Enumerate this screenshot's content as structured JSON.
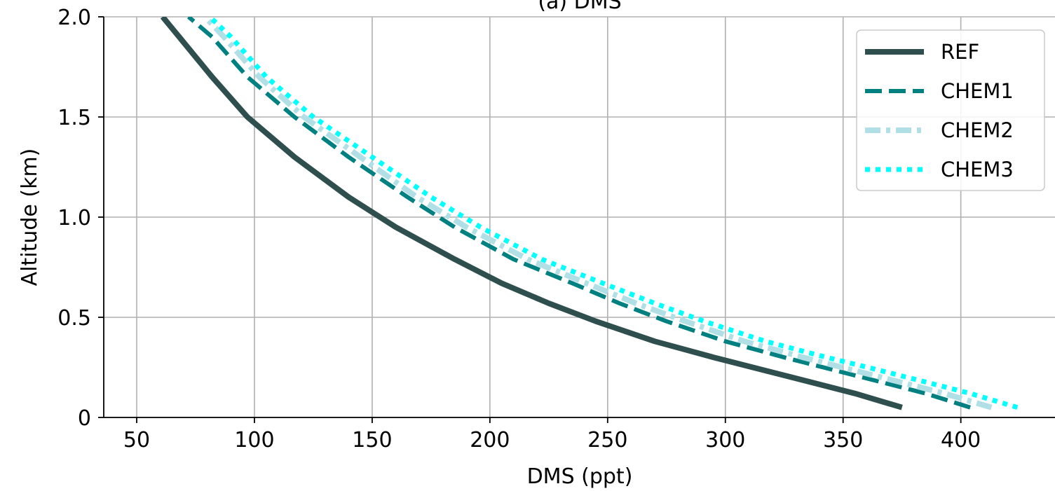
{
  "chart_data": {
    "type": "line",
    "title": "(a) DMS",
    "xlabel": "DMS (ppt)",
    "ylabel": "Altitude (km)",
    "xlim": [
      36,
      440
    ],
    "ylim": [
      0,
      2.0
    ],
    "xticks": [
      50,
      100,
      150,
      200,
      250,
      300,
      350,
      400
    ],
    "yticks": [
      0,
      0.5,
      1.0,
      1.5,
      2.0
    ],
    "xtick_labels": [
      "50",
      "100",
      "150",
      "200",
      "250",
      "300",
      "350",
      "400"
    ],
    "ytick_labels": [
      "0",
      "0.5",
      "1.0",
      "1.5",
      "2.0"
    ],
    "grid": true,
    "legend_position": "top-right",
    "series": [
      {
        "name": "REF",
        "style": "solid",
        "color": "#2f4f4f",
        "x": [
          375,
          355,
          335,
          315,
          295,
          270,
          245,
          225,
          205,
          185,
          160,
          140,
          117,
          97,
          82,
          68,
          61
        ],
        "y": [
          0.05,
          0.12,
          0.18,
          0.24,
          0.3,
          0.38,
          0.48,
          0.57,
          0.67,
          0.79,
          0.95,
          1.1,
          1.3,
          1.5,
          1.7,
          1.9,
          2.0
        ]
      },
      {
        "name": "CHEM1",
        "style": "dashed",
        "color": "#008080",
        "x": [
          404,
          385,
          365,
          345,
          325,
          300,
          275,
          255,
          235,
          210,
          185,
          165,
          140,
          117,
          97,
          82,
          72
        ],
        "y": [
          0.05,
          0.12,
          0.18,
          0.24,
          0.3,
          0.38,
          0.48,
          0.57,
          0.67,
          0.79,
          0.95,
          1.1,
          1.3,
          1.5,
          1.7,
          1.9,
          2.0
        ]
      },
      {
        "name": "CHEM2",
        "style": "dashdot",
        "color": "#b0e0e6",
        "x": [
          413,
          393,
          373,
          353,
          333,
          308,
          283,
          262,
          241,
          216,
          190,
          169,
          145,
          121,
          102,
          87,
          79
        ],
        "y": [
          0.05,
          0.12,
          0.18,
          0.24,
          0.3,
          0.38,
          0.48,
          0.57,
          0.67,
          0.79,
          0.95,
          1.1,
          1.3,
          1.5,
          1.7,
          1.9,
          2.0
        ]
      },
      {
        "name": "CHEM3",
        "style": "dotted",
        "color": "#00ffff",
        "x": [
          424,
          404,
          384,
          364,
          343,
          317,
          291,
          270,
          248,
          222,
          196,
          175,
          150,
          125,
          105,
          90,
          81
        ],
        "y": [
          0.05,
          0.12,
          0.18,
          0.24,
          0.3,
          0.38,
          0.48,
          0.57,
          0.67,
          0.79,
          0.95,
          1.1,
          1.3,
          1.5,
          1.7,
          1.9,
          2.0
        ]
      }
    ]
  }
}
